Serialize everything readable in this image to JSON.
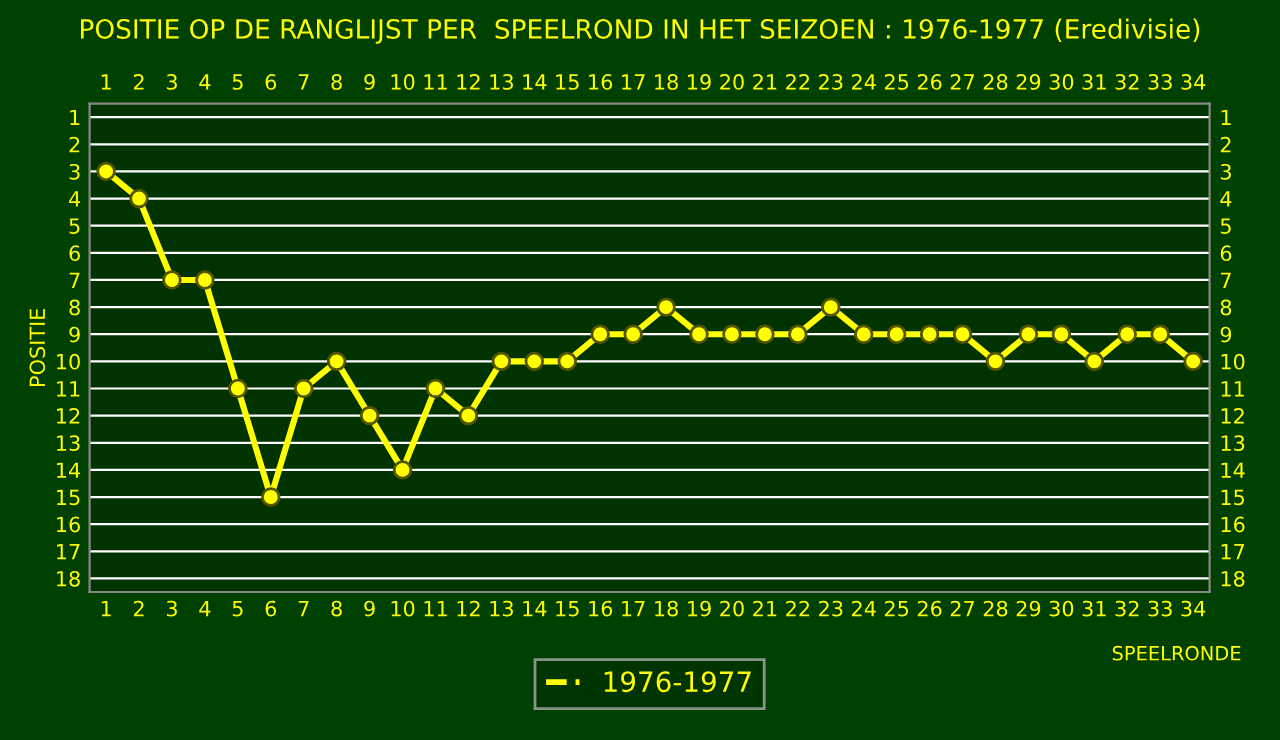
{
  "chart_data": {
    "type": "line",
    "title": "POSITIE OP DE RANGLIJST PER  SPEELROND IN HET SEIZOEN : 1976-1977 (Eredivisie)",
    "xlabel": "SPEELRONDE",
    "ylabel": "POSITIE",
    "x": [
      1,
      2,
      3,
      4,
      5,
      6,
      7,
      8,
      9,
      10,
      11,
      12,
      13,
      14,
      15,
      16,
      17,
      18,
      19,
      20,
      21,
      22,
      23,
      24,
      25,
      26,
      27,
      28,
      29,
      30,
      31,
      32,
      33,
      34
    ],
    "series": [
      {
        "name": "1976-1977",
        "color": "#ffff00",
        "values": [
          3,
          4,
          7,
          7,
          11,
          15,
          11,
          10,
          12,
          14,
          11,
          12,
          10,
          10,
          10,
          9,
          9,
          8,
          9,
          9,
          9,
          9,
          8,
          9,
          9,
          9,
          9,
          10,
          9,
          9,
          10,
          9,
          9,
          10
        ]
      }
    ],
    "xlim": [
      0.5,
      34.5
    ],
    "xticks": [
      1,
      2,
      3,
      4,
      5,
      6,
      7,
      8,
      9,
      10,
      11,
      12,
      13,
      14,
      15,
      16,
      17,
      18,
      19,
      20,
      21,
      22,
      23,
      24,
      25,
      26,
      27,
      28,
      29,
      30,
      31,
      32,
      33,
      34
    ],
    "x2lim": [
      0.5,
      34.5
    ],
    "x2ticks": [
      1,
      2,
      3,
      4,
      5,
      6,
      7,
      8,
      9,
      10,
      11,
      12,
      13,
      14,
      15,
      16,
      17,
      18,
      19,
      20,
      21,
      22,
      23,
      24,
      25,
      26,
      27,
      28,
      29,
      30,
      31,
      32,
      33,
      34
    ],
    "ylim": [
      18.5,
      0.5
    ],
    "yticks": [
      1,
      2,
      3,
      4,
      5,
      6,
      7,
      8,
      9,
      10,
      11,
      12,
      13,
      14,
      15,
      16,
      17,
      18
    ],
    "y2lim": [
      18.5,
      0.5
    ],
    "y2ticks": [
      1,
      2,
      3,
      4,
      5,
      6,
      7,
      8,
      9,
      10,
      11,
      12,
      13,
      14,
      15,
      16,
      17,
      18
    ],
    "grid": "y",
    "legend": "bottom",
    "marker": "circle",
    "line_style": "solid"
  }
}
